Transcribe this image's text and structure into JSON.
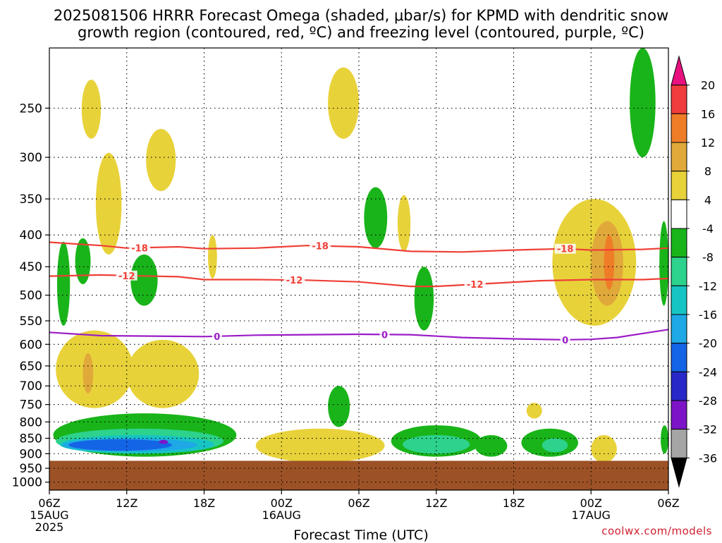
{
  "title_line1": "2025081506 HRRR Forecast Omega (shaded, μbar/s) for KPMD with dendritic snow",
  "title_line2": "growth region (contoured, red, ºC) and freezing level (contoured, purple, ºC)",
  "credit": "coolwx.com/models",
  "colors": {
    "ground": "#9c5226",
    "red_contour": "#ee4036",
    "purple_contour": "#9a1cc6",
    "grid": "#000000"
  },
  "chart_data": {
    "type": "heatmap",
    "title": "2025081506 HRRR Forecast Omega (shaded, μbar/s) for KPMD with dendritic snow growth region (contoured, red, ºC) and freezing level (contoured, purple, ºC)",
    "xlabel": "Forecast Time (UTC)",
    "ylabel": "",
    "x_ticks": [
      "06Z",
      "12Z",
      "18Z",
      "00Z",
      "06Z",
      "12Z",
      "18Z",
      "00Z",
      "06Z"
    ],
    "x_tick_hours": [
      0,
      6,
      12,
      18,
      24,
      30,
      36,
      42,
      48
    ],
    "x_date_labels": [
      {
        "hour": 0,
        "lines": [
          "15AUG",
          "2025"
        ]
      },
      {
        "hour": 18,
        "lines": [
          "16AUG"
        ]
      },
      {
        "hour": 42,
        "lines": [
          "17AUG"
        ]
      }
    ],
    "xlim": [
      0,
      48
    ],
    "y_ticks": [
      250,
      300,
      350,
      400,
      450,
      500,
      550,
      600,
      650,
      700,
      750,
      800,
      850,
      900,
      950,
      1000
    ],
    "ylim_hpa": [
      200,
      1030
    ],
    "y_scale": "log-pressure",
    "ground_top_hpa": 924,
    "grid": true,
    "colorbar": {
      "labels": [
        20,
        16,
        12,
        8,
        4,
        -4,
        -8,
        -12,
        -16,
        -20,
        -24,
        -28,
        -32,
        -36
      ],
      "colors": [
        "#e8117f",
        "#f03c3c",
        "#ef7d28",
        "#e0a93a",
        "#e8d23a",
        "#ffffff",
        "#19b419",
        "#2dd28c",
        "#17c4c4",
        "#1ea8e6",
        "#1464e6",
        "#2828c8",
        "#7d14c8",
        "#a5a5a5",
        "#000000"
      ]
    },
    "contours": [
      {
        "label": "-18",
        "color": "red",
        "points": [
          [
            0,
            411
          ],
          [
            4,
            416
          ],
          [
            6,
            420
          ],
          [
            10,
            418
          ],
          [
            12,
            421
          ],
          [
            16,
            420
          ],
          [
            20,
            416
          ],
          [
            24,
            418
          ],
          [
            28,
            425
          ],
          [
            32,
            426
          ],
          [
            36,
            423
          ],
          [
            38,
            422
          ],
          [
            40,
            421
          ],
          [
            42,
            423
          ],
          [
            46,
            422
          ],
          [
            48,
            420
          ]
        ],
        "label_hours": [
          7,
          21,
          40
        ]
      },
      {
        "label": "-12",
        "color": "red",
        "points": [
          [
            0,
            466
          ],
          [
            4,
            464
          ],
          [
            6,
            465
          ],
          [
            10,
            467
          ],
          [
            12,
            472
          ],
          [
            16,
            472
          ],
          [
            20,
            473
          ],
          [
            24,
            476
          ],
          [
            28,
            484
          ],
          [
            30,
            484
          ],
          [
            34,
            479
          ],
          [
            38,
            474
          ],
          [
            42,
            472
          ],
          [
            46,
            472
          ],
          [
            48,
            470
          ]
        ],
        "label_hours": [
          6,
          19,
          33
        ]
      },
      {
        "label": "0",
        "color": "purple",
        "points": [
          [
            0,
            574
          ],
          [
            4,
            581
          ],
          [
            8,
            582
          ],
          [
            12,
            583
          ],
          [
            16,
            580
          ],
          [
            20,
            579
          ],
          [
            24,
            578
          ],
          [
            28,
            579
          ],
          [
            32,
            585
          ],
          [
            36,
            588
          ],
          [
            40,
            590
          ],
          [
            42,
            589
          ],
          [
            44,
            585
          ],
          [
            48,
            568
          ]
        ],
        "label_hours": [
          13,
          26,
          40
        ]
      }
    ],
    "regions": [
      {
        "value_range": [
          4,
          8
        ],
        "color": "yellow",
        "center": [
          3,
          250
        ],
        "extent_h": [
          2.5,
          4
        ],
        "extent_hpa": [
          225,
          280
        ]
      },
      {
        "value_range": [
          4,
          8
        ],
        "color": "yellow",
        "center": [
          5,
          340
        ],
        "extent_h": [
          3.6,
          5.6
        ],
        "extent_hpa": [
          295,
          430
        ]
      },
      {
        "value_range": [
          4,
          8
        ],
        "color": "yellow",
        "center": [
          8.5,
          300
        ],
        "extent_h": [
          7.5,
          9.8
        ],
        "extent_hpa": [
          270,
          340
        ]
      },
      {
        "value_range": [
          4,
          8
        ],
        "color": "yellow",
        "center": [
          22.8,
          250
        ],
        "extent_h": [
          21.6,
          24
        ],
        "extent_hpa": [
          215,
          280
        ]
      },
      {
        "value_range": [
          4,
          8
        ],
        "color": "yellow",
        "center": [
          27.6,
          380
        ],
        "extent_h": [
          27,
          28
        ],
        "extent_hpa": [
          345,
          425
        ]
      },
      {
        "value_range": [
          4,
          8
        ],
        "color": "yellow",
        "center": [
          12.6,
          440
        ],
        "extent_h": [
          12.3,
          13
        ],
        "extent_hpa": [
          400,
          470
        ]
      },
      {
        "value_range": [
          4,
          8
        ],
        "color": "yellow",
        "center": [
          3,
          650
        ],
        "extent_h": [
          0.5,
          6.5
        ],
        "extent_hpa": [
          570,
          760
        ]
      },
      {
        "value_range": [
          4,
          8
        ],
        "color": "yellow",
        "center": [
          9,
          680
        ],
        "extent_h": [
          6,
          11.6
        ],
        "extent_hpa": [
          590,
          760
        ]
      },
      {
        "value_range": [
          4,
          8
        ],
        "color": "yellow",
        "center": [
          42,
          480
        ],
        "extent_h": [
          39,
          45.5
        ],
        "extent_hpa": [
          350,
          560
        ]
      },
      {
        "value_range": [
          4,
          8
        ],
        "color": "yellow",
        "center": [
          21,
          890
        ],
        "extent_h": [
          16,
          26
        ],
        "extent_hpa": [
          820,
          930
        ]
      },
      {
        "value_range": [
          4,
          8
        ],
        "color": "yellow",
        "center": [
          42.7,
          890
        ],
        "extent_h": [
          42,
          44
        ],
        "extent_hpa": [
          840,
          930
        ]
      },
      {
        "value_range": [
          4,
          8
        ],
        "color": "yellow",
        "center": [
          37.6,
          765
        ],
        "extent_h": [
          37,
          38.2
        ],
        "extent_hpa": [
          745,
          790
        ]
      },
      {
        "value_range": [
          8,
          12
        ],
        "color": "gold",
        "center": [
          43.2,
          440
        ],
        "extent_h": [
          42,
          44.5
        ],
        "extent_hpa": [
          380,
          520
        ]
      },
      {
        "value_range": [
          8,
          12
        ],
        "color": "gold",
        "center": [
          3,
          670
        ],
        "extent_h": [
          2.6,
          3.4
        ],
        "extent_hpa": [
          620,
          720
        ]
      },
      {
        "value_range": [
          12,
          16
        ],
        "color": "orange",
        "center": [
          43.3,
          440
        ],
        "extent_h": [
          43,
          43.8
        ],
        "extent_hpa": [
          400,
          490
        ]
      },
      {
        "value_range": [
          -8,
          -4
        ],
        "color": "green",
        "center": [
          46,
          230
        ],
        "extent_h": [
          45,
          47
        ],
        "extent_hpa": [
          200,
          300
        ]
      },
      {
        "value_range": [
          -8,
          -4
        ],
        "color": "green",
        "center": [
          25.3,
          370
        ],
        "extent_h": [
          24.4,
          26.2
        ],
        "extent_hpa": [
          335,
          420
        ]
      },
      {
        "value_range": [
          -8,
          -4
        ],
        "color": "green",
        "center": [
          1,
          470
        ],
        "extent_h": [
          0.6,
          1.6
        ],
        "extent_hpa": [
          410,
          560
        ]
      },
      {
        "value_range": [
          -8,
          -4
        ],
        "color": "green",
        "center": [
          2.5,
          440
        ],
        "extent_h": [
          2,
          3.2
        ],
        "extent_hpa": [
          405,
          480
        ]
      },
      {
        "value_range": [
          -8,
          -4
        ],
        "color": "green",
        "center": [
          7.2,
          470
        ],
        "extent_h": [
          6.3,
          8.4
        ],
        "extent_hpa": [
          430,
          520
        ]
      },
      {
        "value_range": [
          -8,
          -4
        ],
        "color": "green",
        "center": [
          29,
          510
        ],
        "extent_h": [
          28.3,
          29.8
        ],
        "extent_hpa": [
          450,
          570
        ]
      },
      {
        "value_range": [
          -8,
          -4
        ],
        "color": "green",
        "center": [
          47.6,
          460
        ],
        "extent_h": [
          47.3,
          48
        ],
        "extent_hpa": [
          380,
          520
        ]
      },
      {
        "value_range": [
          -8,
          -4
        ],
        "color": "green",
        "center": [
          22.5,
          750
        ],
        "extent_h": [
          21.6,
          23.3
        ],
        "extent_hpa": [
          700,
          815
        ]
      },
      {
        "value_range": [
          -8,
          -4
        ],
        "color": "green",
        "center": [
          7.5,
          850
        ],
        "extent_h": [
          0.3,
          14.5
        ],
        "extent_hpa": [
          775,
          910
        ]
      },
      {
        "value_range": [
          -12,
          -8
        ],
        "color": "teal",
        "center": [
          7.5,
          860
        ],
        "extent_h": [
          0.5,
          13.5
        ],
        "extent_hpa": [
          820,
          900
        ]
      },
      {
        "value_range": [
          -16,
          -12
        ],
        "color": "cyan",
        "center": [
          7.5,
          865
        ],
        "extent_h": [
          0.8,
          12.8
        ],
        "extent_hpa": [
          840,
          900
        ]
      },
      {
        "value_range": [
          -20,
          -16
        ],
        "color": "blue",
        "center": [
          7.5,
          868
        ],
        "extent_h": [
          1,
          11.5
        ],
        "extent_hpa": [
          850,
          893
        ]
      },
      {
        "value_range": [
          -24,
          -20
        ],
        "color": "dark-blue",
        "center": [
          6,
          872
        ],
        "extent_h": [
          1.5,
          9.5
        ],
        "extent_hpa": [
          853,
          890
        ]
      },
      {
        "value_range": [
          -28,
          -24
        ],
        "color": "purple",
        "center": [
          8.8,
          860
        ],
        "extent_h": [
          8.5,
          9.2
        ],
        "extent_hpa": [
          855,
          868
        ]
      },
      {
        "value_range": [
          -8,
          -4
        ],
        "color": "green",
        "center": [
          30,
          860
        ],
        "extent_h": [
          26.5,
          33.5
        ],
        "extent_hpa": [
          810,
          910
        ]
      },
      {
        "value_range": [
          -12,
          -8
        ],
        "color": "teal",
        "center": [
          30,
          868
        ],
        "extent_h": [
          27.4,
          32.6
        ],
        "extent_hpa": [
          840,
          900
        ]
      },
      {
        "value_range": [
          -8,
          -4
        ],
        "color": "green",
        "center": [
          34.3,
          875
        ],
        "extent_h": [
          33,
          35.5
        ],
        "extent_hpa": [
          840,
          910
        ]
      },
      {
        "value_range": [
          -8,
          -4
        ],
        "color": "green",
        "center": [
          38.8,
          860
        ],
        "extent_h": [
          36.6,
          41
        ],
        "extent_hpa": [
          820,
          910
        ]
      },
      {
        "value_range": [
          -12,
          -8
        ],
        "color": "teal",
        "center": [
          39,
          870
        ],
        "extent_h": [
          38.2,
          40.2
        ],
        "extent_hpa": [
          850,
          895
        ]
      },
      {
        "value_range": [
          -8,
          -4
        ],
        "color": "green",
        "center": [
          47.8,
          860
        ],
        "extent_h": [
          47.4,
          48
        ],
        "extent_hpa": [
          810,
          900
        ]
      }
    ]
  }
}
